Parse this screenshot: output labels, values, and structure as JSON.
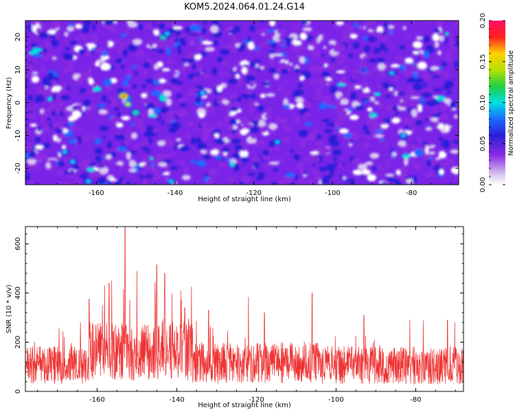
{
  "title": "KOM5.2024.064.01.24.G14",
  "chart_data": [
    {
      "type": "heatmap",
      "xlabel": "Height of straight line (km)",
      "ylabel": "Frequency (Hz)",
      "xlim": [
        -178,
        -68
      ],
      "ylim": [
        -25,
        25
      ],
      "xticks": [
        -160,
        -140,
        -120,
        -100,
        -80
      ],
      "xtick_labels": [
        "-160",
        "-140",
        "-120",
        "-100",
        "-80"
      ],
      "yticks": [
        20,
        10,
        0,
        -10,
        -20
      ],
      "ytick_labels": [
        "20",
        "10",
        "0",
        "-10",
        "-20"
      ],
      "colorbar": {
        "label": "Normalized spectral amplitude",
        "range": [
          0,
          0.2
        ],
        "ticks": [
          0.2,
          0.15,
          0.1,
          0.05,
          0.0
        ],
        "tick_labels": [
          "0.20",
          "0.15",
          "0.10",
          "0.05",
          "0.00"
        ],
        "colors": [
          "#ffffff",
          "#d9c8f0",
          "#8a2be2",
          "#2b1fd6",
          "#1a6bff",
          "#00e0e0",
          "#22d040",
          "#b8e000",
          "#ffd000",
          "#ff2020",
          "#ff1060"
        ]
      },
      "hotspots": [
        {
          "x": -153,
          "y": 2,
          "amp": 0.2
        },
        {
          "x": -152,
          "y": -0.5,
          "amp": 0.16
        },
        {
          "x": -150,
          "y": -3,
          "amp": 0.12
        },
        {
          "x": -143,
          "y": 20,
          "amp": 0.12
        },
        {
          "x": -142,
          "y": 21,
          "amp": 0.11
        },
        {
          "x": -168,
          "y": -15,
          "amp": 0.1
        },
        {
          "x": -166,
          "y": -18,
          "amp": 0.11
        },
        {
          "x": -162,
          "y": -24,
          "amp": 0.11
        },
        {
          "x": -146,
          "y": -17,
          "amp": 0.09
        },
        {
          "x": -141,
          "y": -24,
          "amp": 0.1
        },
        {
          "x": -114,
          "y": -12,
          "amp": 0.1
        },
        {
          "x": -85,
          "y": 9,
          "amp": 0.11
        },
        {
          "x": -82,
          "y": -10,
          "amp": 0.1
        },
        {
          "x": -133,
          "y": 3,
          "amp": 0.1
        },
        {
          "x": -71,
          "y": 21,
          "amp": 0.09
        }
      ]
    },
    {
      "type": "line",
      "xlabel": "Height of straight line (km)",
      "ylabel": "SNR (10 * v/v)",
      "xlim": [
        -178,
        -68
      ],
      "ylim": [
        0,
        670
      ],
      "xticks": [
        -160,
        -140,
        -120,
        -100,
        -80
      ],
      "xtick_labels": [
        "-160",
        "-140",
        "-120",
        "-100",
        "-80"
      ],
      "yticks": [
        0,
        200,
        400,
        600
      ],
      "ytick_labels": [
        "0",
        "200",
        "400",
        "600"
      ],
      "color": "#ee3333",
      "peaks": [
        {
          "x": -153,
          "y": 670
        },
        {
          "x": -157,
          "y": 440
        },
        {
          "x": -145,
          "y": 515
        },
        {
          "x": -150,
          "y": 490
        },
        {
          "x": -143,
          "y": 480
        },
        {
          "x": -139,
          "y": 410
        },
        {
          "x": -122,
          "y": 385
        },
        {
          "x": -106,
          "y": 400
        },
        {
          "x": -138,
          "y": 340
        },
        {
          "x": -132,
          "y": 330
        },
        {
          "x": -118,
          "y": 320
        },
        {
          "x": -93,
          "y": 310
        },
        {
          "x": -72,
          "y": 290
        },
        {
          "x": -162,
          "y": 375
        }
      ],
      "baseline_mean": 115
    }
  ]
}
